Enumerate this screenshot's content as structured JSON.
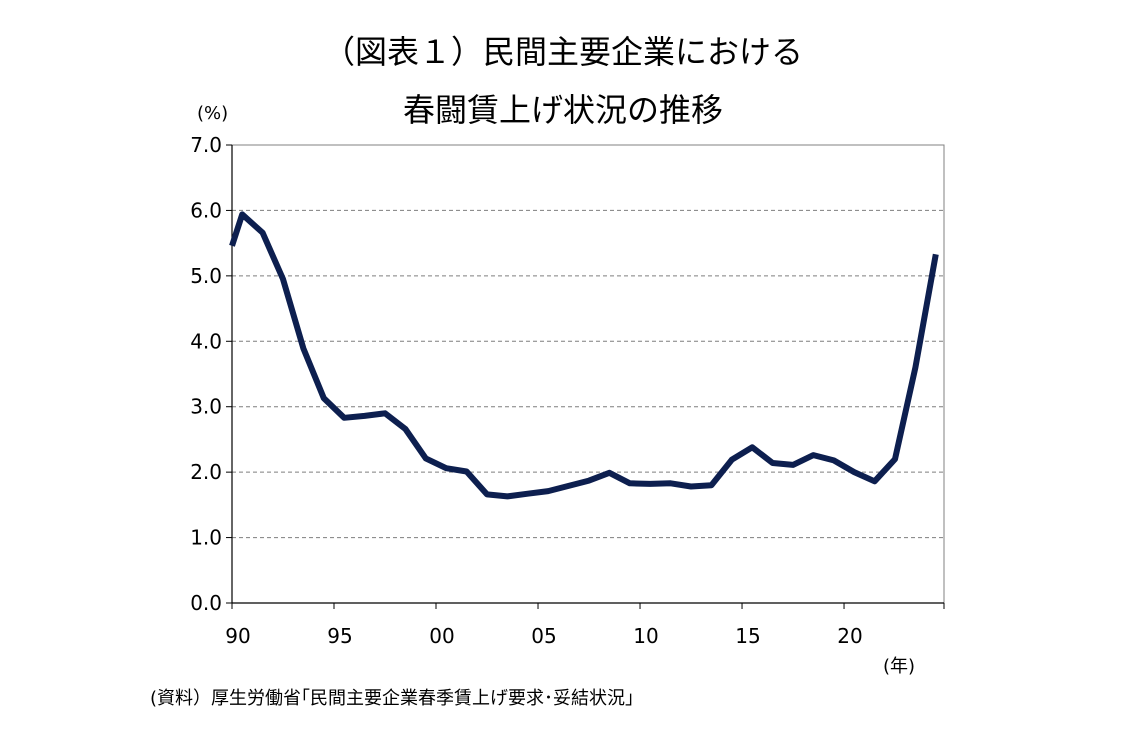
{
  "chart_data": {
    "type": "line",
    "title": "（図表１）民間主要企業における",
    "subtitle": "春闘賃上げ状況の推移",
    "ylabel": "(%)",
    "xlabel": "(年)",
    "source": "(資料）厚生労働省｢民間主要企業春季賃上げ要求･妥結状況｣",
    "ylim": [
      0,
      7
    ],
    "xlim": [
      1990,
      2024.9
    ],
    "y_ticks": [
      "0.0",
      "1.0",
      "2.0",
      "3.0",
      "4.0",
      "5.0",
      "6.0",
      "7.0"
    ],
    "x_ticks": [
      {
        "value": 1990,
        "label": "90"
      },
      {
        "value": 1995,
        "label": "95"
      },
      {
        "value": 2000,
        "label": "00"
      },
      {
        "value": 2005,
        "label": "05"
      },
      {
        "value": 2010,
        "label": "10"
      },
      {
        "value": 2015,
        "label": "15"
      },
      {
        "value": 2020,
        "label": "20"
      }
    ],
    "grid": true,
    "series": [
      {
        "color": "#0d1f4f",
        "x": [
          1990,
          1990.5,
          1991.5,
          1992.5,
          1993.5,
          1994.5,
          1995.5,
          1996.5,
          1997.5,
          1998.5,
          1999.5,
          2000.5,
          2001.5,
          2002.5,
          2003.5,
          2004.5,
          2005.5,
          2006.5,
          2007.5,
          2008.5,
          2009.5,
          2010.5,
          2011.5,
          2012.5,
          2013.5,
          2014.5,
          2015.5,
          2016.5,
          2017.5,
          2018.5,
          2019.5,
          2020.5,
          2021.5,
          2022.5,
          2023.5,
          2024.5
        ],
        "values": [
          5.46,
          5.94,
          5.66,
          4.95,
          3.89,
          3.13,
          2.83,
          2.86,
          2.9,
          2.66,
          2.21,
          2.06,
          2.01,
          1.66,
          1.63,
          1.67,
          1.71,
          1.79,
          1.87,
          1.99,
          1.83,
          1.82,
          1.83,
          1.78,
          1.8,
          2.19,
          2.38,
          2.14,
          2.11,
          2.26,
          2.18,
          2.0,
          1.86,
          2.2,
          3.6,
          5.33
        ]
      }
    ]
  }
}
